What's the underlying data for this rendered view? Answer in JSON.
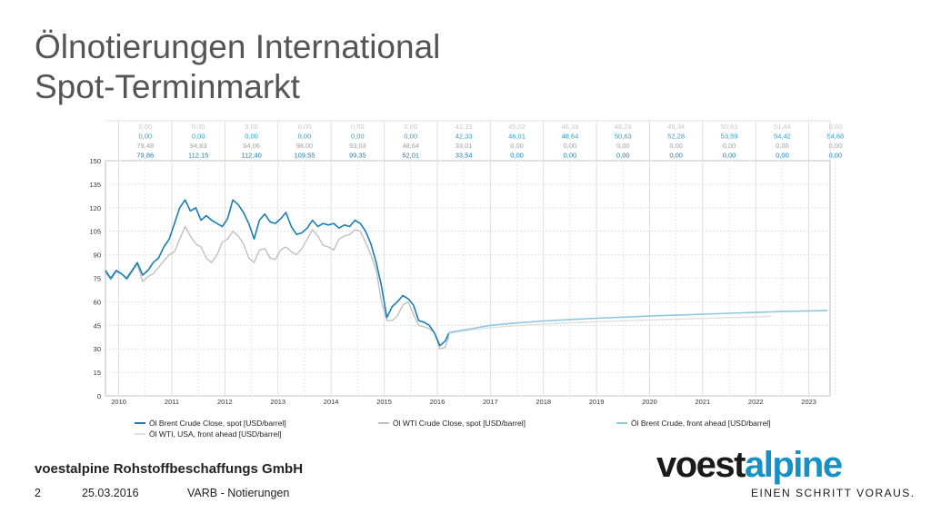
{
  "slide": {
    "title_line1": "Ölnotierungen International",
    "title_line2": "Spot-Terminmarkt"
  },
  "footer": {
    "company": "voestalpine Rohstoffbeschaffungs GmbH",
    "page_number": "2",
    "date": "25.03.2016",
    "subject": "VARB - Notierungen"
  },
  "logo": {
    "word_part1": "voest",
    "word_part2": "alpine",
    "tagline": "EINEN SCHRITT VORAUS."
  },
  "colors": {
    "brent_spot": "#1a7fae",
    "wti_spot": "#c0c0c0",
    "brent_forward": "#8cc8e0",
    "wti_forward": "#e0e0e0",
    "grid": "#d8d8d8",
    "brand_accent": "#1591c6"
  },
  "chart_data": {
    "type": "line",
    "x_categories": [
      "2010",
      "2011",
      "2012",
      "2013",
      "2014",
      "2015",
      "2016",
      "2017",
      "2018",
      "2019",
      "2020",
      "2021",
      "2022",
      "2023"
    ],
    "x_range": [
      2009.75,
      2023.4
    ],
    "ylim": [
      0,
      150
    ],
    "y_ticks": [
      "0",
      "15",
      "30",
      "45",
      "60",
      "75",
      "90",
      "105",
      "120",
      "135",
      "150"
    ],
    "grid": true,
    "legend_position": "bottom",
    "series": [
      {
        "name": "Öl Brent Crude Close, spot [USD/barrel]",
        "x": [
          2009.75,
          2009.85,
          2009.95,
          2010.05,
          2010.15,
          2010.25,
          2010.35,
          2010.45,
          2010.55,
          2010.65,
          2010.75,
          2010.85,
          2010.95,
          2011.05,
          2011.15,
          2011.25,
          2011.35,
          2011.45,
          2011.55,
          2011.65,
          2011.75,
          2011.85,
          2011.95,
          2012.05,
          2012.15,
          2012.25,
          2012.35,
          2012.45,
          2012.55,
          2012.65,
          2012.75,
          2012.85,
          2012.95,
          2013.05,
          2013.15,
          2013.25,
          2013.35,
          2013.45,
          2013.55,
          2013.65,
          2013.75,
          2013.85,
          2013.95,
          2014.05,
          2014.15,
          2014.25,
          2014.35,
          2014.45,
          2014.55,
          2014.65,
          2014.75,
          2014.85,
          2014.95,
          2015.05,
          2015.15,
          2015.25,
          2015.35,
          2015.45,
          2015.55,
          2015.65,
          2015.75,
          2015.85,
          2015.95,
          2016.05,
          2016.15,
          2016.22
        ],
        "y": [
          80,
          75,
          80,
          78,
          75,
          80,
          85,
          77,
          80,
          85,
          88,
          95,
          100,
          110,
          120,
          125,
          118,
          120,
          112,
          115,
          112,
          110,
          108,
          113,
          125,
          122,
          117,
          110,
          100,
          112,
          116,
          111,
          110,
          113,
          117,
          108,
          103,
          104,
          107,
          112,
          108,
          110,
          109,
          110,
          107,
          109,
          108,
          112,
          110,
          105,
          97,
          85,
          70,
          50,
          57,
          60,
          64,
          62,
          58,
          48,
          47,
          45,
          40,
          32,
          35,
          40
        ]
      },
      {
        "name": "Öl WTI Crude Close, spot [USD/barrel]",
        "x": [
          2009.75,
          2009.85,
          2009.95,
          2010.05,
          2010.15,
          2010.25,
          2010.35,
          2010.45,
          2010.55,
          2010.65,
          2010.75,
          2010.85,
          2010.95,
          2011.05,
          2011.15,
          2011.25,
          2011.35,
          2011.45,
          2011.55,
          2011.65,
          2011.75,
          2011.85,
          2011.95,
          2012.05,
          2012.15,
          2012.25,
          2012.35,
          2012.45,
          2012.55,
          2012.65,
          2012.75,
          2012.85,
          2012.95,
          2013.05,
          2013.15,
          2013.25,
          2013.35,
          2013.45,
          2013.55,
          2013.65,
          2013.75,
          2013.85,
          2013.95,
          2014.05,
          2014.15,
          2014.25,
          2014.35,
          2014.45,
          2014.55,
          2014.65,
          2014.75,
          2014.85,
          2014.95,
          2015.05,
          2015.15,
          2015.25,
          2015.35,
          2015.45,
          2015.55,
          2015.65,
          2015.75,
          2015.85,
          2015.95,
          2016.05,
          2016.15,
          2016.22
        ],
        "y": [
          79,
          74,
          79,
          78,
          74,
          79,
          84,
          73,
          76,
          78,
          82,
          86,
          90,
          92,
          100,
          108,
          102,
          97,
          95,
          88,
          85,
          90,
          98,
          100,
          105,
          102,
          97,
          88,
          85,
          93,
          94,
          88,
          87,
          93,
          95,
          92,
          90,
          94,
          100,
          106,
          102,
          96,
          95,
          93,
          100,
          102,
          103,
          106,
          105,
          98,
          90,
          80,
          60,
          48,
          48,
          51,
          58,
          60,
          52,
          45,
          44,
          43,
          40,
          30,
          31,
          38
        ]
      },
      {
        "name": "Öl Brent Crude, front ahead [USD/barrel]",
        "x": [
          2016.22,
          2016.5,
          2017.0,
          2017.5,
          2018.0,
          2018.5,
          2019.0,
          2019.5,
          2020.0,
          2020.5,
          2021.0,
          2021.5,
          2022.0,
          2022.5,
          2023.0,
          2023.35
        ],
        "y": [
          40.5,
          42,
          45,
          46.5,
          47.8,
          48.7,
          49.5,
          50.2,
          50.9,
          51.5,
          52.1,
          52.7,
          53.2,
          53.8,
          54.2,
          54.5
        ]
      },
      {
        "name": "Öl WTI, USA, front ahead [USD/barrel]",
        "x": [
          2016.22,
          2016.5,
          2017.0,
          2017.5,
          2018.0,
          2018.5,
          2019.0,
          2019.5,
          2020.0,
          2020.5,
          2021.0,
          2021.5,
          2022.0,
          2022.3
        ],
        "y": [
          39.5,
          41.5,
          43.5,
          44.8,
          45.8,
          46.6,
          47.3,
          47.9,
          48.4,
          48.9,
          49.4,
          49.9,
          50.4,
          50.8
        ]
      }
    ],
    "table": [
      [
        "0,00",
        "0,00",
        "79,48",
        "79,86"
      ],
      [
        "0,00",
        "0,00",
        "94,83",
        "112,15"
      ],
      [
        "0,00",
        "0,00",
        "94,06",
        "112,40"
      ],
      [
        "0,00",
        "0,00",
        "98,00",
        "109,55"
      ],
      [
        "0,00",
        "0,00",
        "93,03",
        "99,35"
      ],
      [
        "0,00",
        "0,00",
        "48,64",
        "52,01"
      ],
      [
        "42,33",
        "42,33",
        "33,01",
        "33,54"
      ],
      [
        "45,02",
        "46,01",
        "0,00",
        "0,00"
      ],
      [
        "46,39",
        "48,64",
        "0,00",
        "0,00"
      ],
      [
        "48,23",
        "50,63",
        "0,00",
        "0,00"
      ],
      [
        "49,34",
        "52,28",
        "0,00",
        "0,00"
      ],
      [
        "50,63",
        "53,59",
        "0,00",
        "0,00"
      ],
      [
        "51,44",
        "54,42",
        "0,00",
        "0,00"
      ],
      [
        "0,00",
        "54,68",
        "0,00",
        "0,00"
      ]
    ]
  }
}
